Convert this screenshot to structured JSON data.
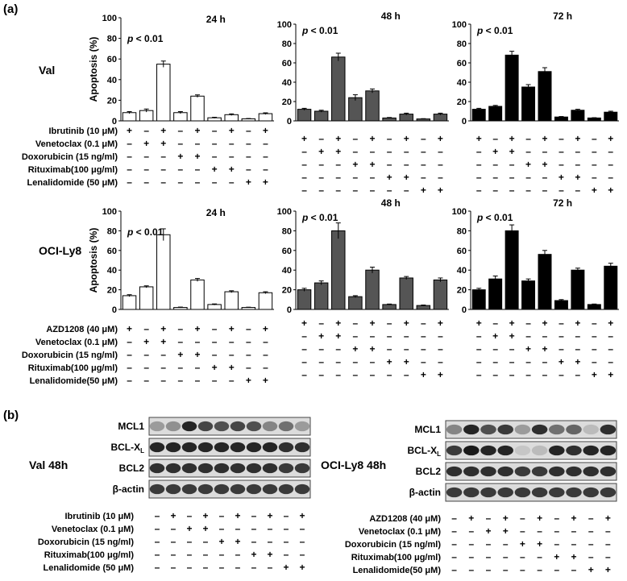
{
  "panels": {
    "a": "(a)",
    "b": "(b)"
  },
  "ylabel": "Apoptosis (%)",
  "cell_lines": {
    "val": "Val",
    "ocily8": "OCI-Ly8"
  },
  "row1_treatments": [
    "Ibrutinib (10 μM)",
    "Venetoclax (0.1 μM)",
    "Doxorubicin (15 ng/ml)",
    "Rituximab(100 μg/ml)",
    "Lenalidomide (50 μM)"
  ],
  "row2_treatments": [
    "AZD1208 (40 μM)",
    "Venetoclax (0.1 μM)",
    "Doxorubicin (15 ng/ml)",
    "Rituximab(100 μg/ml)",
    "Lenalidomide(50 μM)"
  ],
  "sign_matrix": [
    [
      "+",
      "-",
      "+",
      "-",
      "+",
      "-",
      "+",
      "-",
      "+"
    ],
    [
      "-",
      "+",
      "+",
      "-",
      "-",
      "-",
      "-",
      "-",
      "-"
    ],
    [
      "-",
      "-",
      "-",
      "+",
      "+",
      "-",
      "-",
      "-",
      "-"
    ],
    [
      "-",
      "-",
      "-",
      "-",
      "-",
      "+",
      "+",
      "-",
      "-"
    ],
    [
      "-",
      "-",
      "-",
      "-",
      "-",
      "-",
      "-",
      "+",
      "+"
    ]
  ],
  "chart_data": [
    {
      "type": "bar",
      "title": "24 h",
      "annotation": "p < 0.01",
      "ylabel": "Apoptosis (%)",
      "ylim": [
        0,
        100
      ],
      "yticks": [
        "0",
        "20",
        "40",
        "60",
        "80",
        "100"
      ],
      "color": "#ffffff",
      "values": [
        8,
        10,
        55,
        8,
        24,
        3,
        6,
        2,
        7
      ],
      "errors": [
        1,
        1.5,
        3,
        1,
        1.2,
        0.5,
        0.8,
        0.3,
        0.8
      ]
    },
    {
      "type": "bar",
      "title": "48 h",
      "annotation": "p < 0.01",
      "ylim": [
        0,
        100
      ],
      "yticks": [
        "0",
        "20",
        "40",
        "60",
        "80",
        "100"
      ],
      "color": "#555555",
      "values": [
        12,
        10,
        66,
        24,
        31,
        3,
        7,
        2,
        7
      ],
      "errors": [
        1,
        1,
        4,
        3,
        2,
        0.5,
        1,
        0.3,
        1
      ]
    },
    {
      "type": "bar",
      "title": "72 h",
      "annotation": "p < 0.01",
      "ylim": [
        0,
        100
      ],
      "yticks": [
        "0",
        "20",
        "40",
        "60",
        "80",
        "100"
      ],
      "color": "#000000",
      "values": [
        12,
        15,
        68,
        35,
        51,
        4,
        11,
        3,
        9
      ],
      "errors": [
        1,
        1,
        4,
        2.5,
        4,
        0.5,
        1,
        0.3,
        1
      ]
    },
    {
      "type": "bar",
      "title": "24 h",
      "annotation": "p < 0.01",
      "ylabel": "Apoptosis (%)",
      "ylim": [
        0,
        100
      ],
      "yticks": [
        "0",
        "20",
        "40",
        "60",
        "80",
        "100"
      ],
      "color": "#ffffff",
      "values": [
        14,
        23,
        76,
        2,
        30,
        5,
        18,
        2,
        17
      ],
      "errors": [
        1,
        1,
        6,
        0.4,
        1.5,
        0.6,
        1,
        0.3,
        1
      ]
    },
    {
      "type": "bar",
      "title": "48 h",
      "annotation": "p < 0.01",
      "ylim": [
        0,
        100
      ],
      "yticks": [
        "0",
        "20",
        "40",
        "60",
        "80",
        "100"
      ],
      "color": "#555555",
      "values": [
        20,
        27,
        80,
        13,
        40,
        5,
        32,
        4,
        30
      ],
      "errors": [
        1.5,
        2,
        8,
        1,
        3,
        0.5,
        1.5,
        0.5,
        2
      ]
    },
    {
      "type": "bar",
      "title": "72 h",
      "annotation": "p < 0.01",
      "ylim": [
        0,
        100
      ],
      "yticks": [
        "0",
        "20",
        "40",
        "60",
        "80",
        "100"
      ],
      "color": "#000000",
      "values": [
        20,
        31,
        80,
        29,
        56,
        9,
        40,
        5,
        44
      ],
      "errors": [
        1.5,
        3,
        6,
        2,
        4,
        1,
        2,
        0.5,
        3
      ]
    }
  ],
  "blots": {
    "val_label": "Val 48h",
    "ocily8_label": "OCI-Ly8  48h",
    "val_proteins": [
      "MCL1",
      "BCL-X",
      "BCL2",
      "β-actin"
    ],
    "ocily8_proteins": [
      "MCL1",
      "BCL-X",
      "BCL2",
      "β-actin"
    ],
    "subscript": "L",
    "val_treatments": [
      "Ibrutinib (10 μM)",
      "Venetoclax (0.1 μM)",
      "Doxorubicin (15 ng/ml)",
      "Rituximab(100 μg/ml)",
      "Lenalidomide (50 μM)"
    ],
    "ocily8_treatments": [
      "AZD1208 (40 μM)",
      "Venetoclax (0.1 μM)",
      "Doxorubicin (15 ng/ml)",
      "Rituximab(100 μg/ml)",
      "Lenalidomide(50 μM)"
    ],
    "blot_sign_matrix": [
      [
        "-",
        "+",
        "-",
        "+",
        "-",
        "+",
        "-",
        "+",
        "-",
        "+"
      ],
      [
        "-",
        "-",
        "+",
        "+",
        "-",
        "-",
        "-",
        "-",
        "-",
        "-"
      ],
      [
        "-",
        "-",
        "-",
        "-",
        "+",
        "+",
        "-",
        "-",
        "-",
        "-"
      ],
      [
        "-",
        "-",
        "-",
        "-",
        "-",
        "-",
        "+",
        "+",
        "-",
        "-"
      ],
      [
        "-",
        "-",
        "-",
        "-",
        "-",
        "-",
        "-",
        "-",
        "+",
        "+"
      ]
    ],
    "val_intensity": [
      [
        0.35,
        0.4,
        0.9,
        0.75,
        0.7,
        0.75,
        0.7,
        0.45,
        0.55,
        0.35
      ],
      [
        0.9,
        0.9,
        0.9,
        0.9,
        0.9,
        0.9,
        0.9,
        0.9,
        0.85,
        0.85
      ],
      [
        0.85,
        0.85,
        0.85,
        0.85,
        0.85,
        0.85,
        0.85,
        0.85,
        0.8,
        0.8
      ],
      [
        0.8,
        0.8,
        0.8,
        0.8,
        0.8,
        0.8,
        0.8,
        0.8,
        0.8,
        0.8
      ]
    ],
    "ocily8_intensity": [
      [
        0.45,
        0.9,
        0.7,
        0.8,
        0.35,
        0.85,
        0.55,
        0.6,
        0.2,
        0.85
      ],
      [
        0.8,
        0.95,
        0.9,
        0.9,
        0.15,
        0.2,
        0.9,
        0.85,
        0.9,
        0.9
      ],
      [
        0.85,
        0.85,
        0.85,
        0.85,
        0.8,
        0.8,
        0.85,
        0.85,
        0.85,
        0.85
      ],
      [
        0.8,
        0.8,
        0.8,
        0.8,
        0.8,
        0.8,
        0.8,
        0.8,
        0.8,
        0.8
      ]
    ]
  }
}
